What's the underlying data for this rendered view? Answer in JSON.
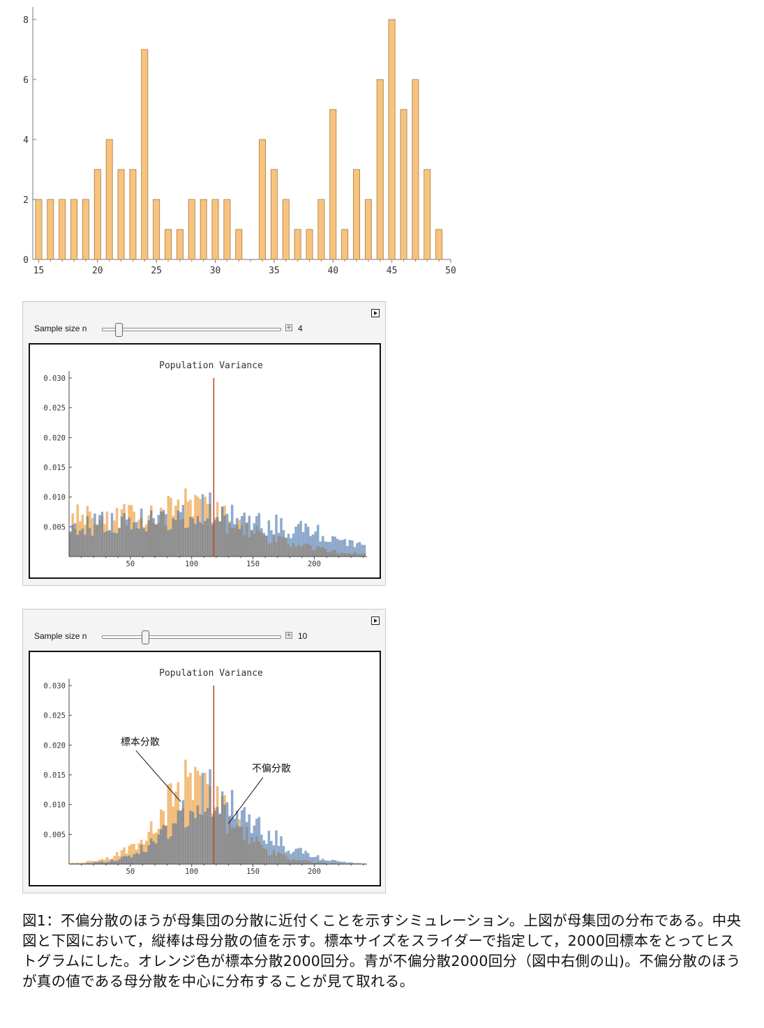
{
  "top_chart": {
    "chart_data": {
      "type": "bar",
      "x": [
        15,
        16,
        17,
        18,
        19,
        20,
        21,
        22,
        23,
        24,
        25,
        26,
        27,
        28,
        29,
        30,
        31,
        32,
        33,
        34,
        35,
        36,
        37,
        38,
        39,
        40,
        41,
        42,
        43,
        44,
        45,
        46,
        47,
        48,
        49
      ],
      "values": [
        2,
        2,
        2,
        2,
        2,
        3,
        4,
        3,
        3,
        7,
        2,
        1,
        1,
        2,
        2,
        2,
        2,
        1,
        0,
        4,
        3,
        2,
        1,
        1,
        2,
        5,
        1,
        3,
        2,
        6,
        8,
        5,
        6,
        3,
        1
      ],
      "xticks": [
        "15",
        "20",
        "25",
        "30",
        "35",
        "40",
        "45",
        "50"
      ],
      "yticks": [
        "0",
        "2",
        "4",
        "6",
        "8"
      ],
      "xlim": [
        14.5,
        50
      ],
      "ylim": [
        0,
        8
      ],
      "bar_color": "#f7c37e",
      "bar_edge": "#a6783e"
    }
  },
  "panels": [
    {
      "slider_label": "Sample size n",
      "slider_value": "4",
      "slider_fraction": 0.09,
      "chart_data": {
        "type": "histogram",
        "title": "Population Variance",
        "xticks": [
          "50",
          "100",
          "150",
          "200"
        ],
        "yticks": [
          "0.005",
          "0.010",
          "0.015",
          "0.020",
          "0.025",
          "0.030"
        ],
        "xlim": [
          0,
          243
        ],
        "ylim": [
          0,
          0.03
        ],
        "bin_width": 2,
        "population_variance": 118,
        "series": [
          {
            "color": "#f2bd7a",
            "peaks": [
              [
                2,
                0.0058
              ],
              [
                8,
                0.0065
              ],
              [
                20,
                0.0061
              ],
              [
                38,
                0.0064
              ],
              [
                52,
                0.0069
              ],
              [
                72,
                0.0071
              ],
              [
                92,
                0.0089
              ],
              [
                110,
                0.0082
              ],
              [
                124,
                0.0067
              ],
              [
                140,
                0.0046
              ],
              [
                165,
                0.0032
              ],
              [
                195,
                0.0016
              ],
              [
                230,
                0.0006
              ]
            ]
          },
          {
            "color": "#8ea9cb",
            "peaks": [
              [
                2,
                0.005
              ],
              [
                20,
                0.0056
              ],
              [
                40,
                0.0058
              ],
              [
                60,
                0.0064
              ],
              [
                80,
                0.0067
              ],
              [
                100,
                0.0076
              ],
              [
                120,
                0.0081
              ],
              [
                140,
                0.0066
              ],
              [
                160,
                0.0056
              ],
              [
                180,
                0.0049
              ],
              [
                200,
                0.0041
              ],
              [
                215,
                0.0031
              ],
              [
                240,
                0.002
              ]
            ]
          }
        ],
        "annotations": []
      }
    },
    {
      "slider_label": "Sample size n",
      "slider_value": "10",
      "slider_fraction": 0.24,
      "chart_data": {
        "type": "histogram",
        "title": "Population Variance",
        "xticks": [
          "50",
          "100",
          "150",
          "200"
        ],
        "yticks": [
          "0.005",
          "0.010",
          "0.015",
          "0.020",
          "0.025",
          "0.030"
        ],
        "xlim": [
          0,
          243
        ],
        "ylim": [
          0,
          0.03
        ],
        "bin_width": 2,
        "population_variance": 118,
        "series": [
          {
            "color": "#f2bd7a",
            "peaks": [
              [
                10,
                0.0002
              ],
              [
                30,
                0.0009
              ],
              [
                50,
                0.0025
              ],
              [
                70,
                0.0065
              ],
              [
                84,
                0.0115
              ],
              [
                98,
                0.014
              ],
              [
                112,
                0.0122
              ],
              [
                126,
                0.0088
              ],
              [
                140,
                0.0055
              ],
              [
                160,
                0.0025
              ],
              [
                180,
                0.001
              ],
              [
                200,
                0.0003
              ],
              [
                225,
                0.0001
              ]
            ]
          },
          {
            "color": "#8ea9cb",
            "peaks": [
              [
                10,
                0.0001
              ],
              [
                30,
                0.0004
              ],
              [
                50,
                0.0014
              ],
              [
                70,
                0.004
              ],
              [
                90,
                0.0085
              ],
              [
                105,
                0.0112
              ],
              [
                118,
                0.012
              ],
              [
                132,
                0.0104
              ],
              [
                146,
                0.0078
              ],
              [
                162,
                0.0052
              ],
              [
                180,
                0.0028
              ],
              [
                200,
                0.0012
              ],
              [
                222,
                0.0004
              ],
              [
                240,
                0.0001
              ]
            ]
          }
        ],
        "annotations": [
          {
            "text": "標本分散",
            "target_x": 91,
            "target_y": 0.0105,
            "label_x": 58,
            "label_y": 0.02
          },
          {
            "text": "不偏分散",
            "target_x": 130,
            "target_y": 0.0068,
            "label_x": 165,
            "label_y": 0.0155
          }
        ]
      }
    }
  ],
  "caption": "図1：不偏分散のほうが母集団の分散に近付くことを示すシミュレーション。上図が母集団の分布である。中央図と下図において，縦棒は母分散の値を示す。標本サイズをスライダーで指定して，2000回標本をとってヒストグラムにした。オレンジ色が標本分散2000回分。青が不偏分散2000回分（図中右側の山)。不偏分散のほうが真の値である母分散を中心に分布することが見て取れる。"
}
